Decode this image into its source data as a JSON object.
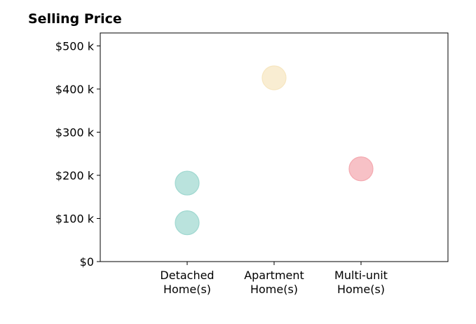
{
  "chart_data": {
    "type": "scatter",
    "title": "Selling Price",
    "xlabel": "",
    "ylabel": "",
    "categories": [
      {
        "line1": "Detached",
        "line2": "Home(s)"
      },
      {
        "line1": "Apartment",
        "line2": "Home(s)"
      },
      {
        "line1": "Multi-unit",
        "line2": "Home(s)"
      }
    ],
    "xlim": [
      -1,
      3
    ],
    "ylim": [
      0,
      530
    ],
    "y_unit": "$ thousands",
    "yticks": [
      {
        "value": 0,
        "label": "$0"
      },
      {
        "value": 100,
        "label": "$100 k"
      },
      {
        "value": 200,
        "label": "$200 k"
      },
      {
        "value": 300,
        "label": "$300 k"
      },
      {
        "value": 400,
        "label": "$400 k"
      },
      {
        "value": 500,
        "label": "$500 k"
      }
    ],
    "points": [
      {
        "category": 0,
        "y": 90,
        "color": "#9fd8d0"
      },
      {
        "category": 0,
        "y": 182,
        "color": "#9fd8d0"
      },
      {
        "category": 1,
        "y": 426,
        "color": "#f6e6c0"
      },
      {
        "category": 2,
        "y": 215,
        "color": "#f4a9b0"
      }
    ],
    "grid": false,
    "legend": "none"
  }
}
